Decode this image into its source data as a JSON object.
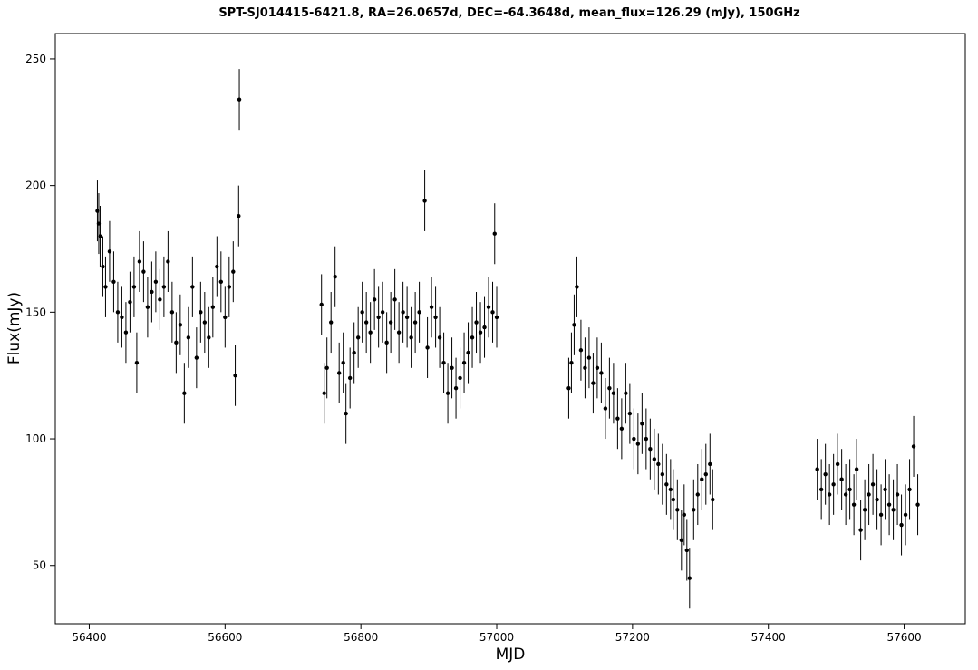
{
  "chart_data": {
    "type": "scatter",
    "title": "SPT-SJ014415-6421.8, RA=26.0657d, DEC=-64.3648d, mean_flux=126.29 (mJy), 150GHz",
    "xlabel": "MJD",
    "ylabel": "Flux(mJy)",
    "xlim": [
      56350,
      57690
    ],
    "ylim": [
      27,
      260
    ],
    "x_ticks": [
      "56400",
      "56600",
      "56800",
      "57000",
      "57200",
      "57400",
      "57600"
    ],
    "y_ticks": [
      "50",
      "100",
      "150",
      "200",
      "250"
    ],
    "grid": false,
    "legend": "none",
    "colors": {
      "marker": "#000000",
      "errorbar": "#000000",
      "frame": "#000000"
    },
    "series": [
      {
        "marker": "filled-circle",
        "error_bars": true,
        "typical_error": 12,
        "x": [
          56412,
          56414,
          56416,
          56420,
          56424,
          56430,
          56436,
          56442,
          56448,
          56454,
          56460,
          56466,
          56470,
          56474,
          56480,
          56486,
          56492,
          56498,
          56504,
          56510,
          56516,
          56522,
          56528,
          56534,
          56540,
          56546,
          56552,
          56558,
          56564,
          56570,
          56576,
          56582,
          56588,
          56594,
          56600,
          56606,
          56612,
          56615,
          56620,
          56621,
          56742,
          56746,
          56750,
          56756,
          56762,
          56768,
          56774,
          56778,
          56784,
          56790,
          56796,
          56802,
          56808,
          56814,
          56820,
          56826,
          56832,
          56838,
          56844,
          56850,
          56856,
          56862,
          56868,
          56874,
          56880,
          56886,
          56894,
          56898,
          56904,
          56910,
          56916,
          56922,
          56928,
          56934,
          56940,
          56946,
          56952,
          56958,
          56964,
          56970,
          56976,
          56982,
          56988,
          56994,
          56997,
          57000,
          57106,
          57110,
          57114,
          57118,
          57124,
          57130,
          57136,
          57142,
          57148,
          57154,
          57160,
          57166,
          57172,
          57178,
          57184,
          57190,
          57196,
          57202,
          57208,
          57214,
          57220,
          57226,
          57232,
          57238,
          57244,
          57250,
          57256,
          57260,
          57266,
          57272,
          57276,
          57280,
          57284,
          57290,
          57296,
          57302,
          57308,
          57314,
          57318,
          57472,
          57478,
          57484,
          57490,
          57496,
          57502,
          57508,
          57514,
          57520,
          57526,
          57530,
          57536,
          57542,
          57548,
          57554,
          57560,
          57566,
          57572,
          57578,
          57584,
          57590,
          57596,
          57602,
          57608,
          57614,
          57620
        ],
        "y": [
          190,
          185,
          180,
          168,
          160,
          174,
          162,
          150,
          148,
          142,
          154,
          160,
          130,
          170,
          166,
          152,
          158,
          162,
          155,
          160,
          170,
          150,
          138,
          145,
          118,
          140,
          160,
          132,
          150,
          146,
          140,
          152,
          168,
          162,
          148,
          160,
          166,
          125,
          188,
          234,
          153,
          118,
          128,
          146,
          164,
          126,
          130,
          110,
          124,
          134,
          140,
          150,
          146,
          142,
          155,
          148,
          150,
          138,
          146,
          155,
          142,
          150,
          148,
          140,
          146,
          150,
          194,
          136,
          152,
          148,
          140,
          130,
          118,
          128,
          120,
          124,
          130,
          134,
          140,
          146,
          142,
          144,
          152,
          150,
          181,
          148,
          120,
          130,
          145,
          160,
          135,
          128,
          132,
          122,
          128,
          126,
          112,
          120,
          118,
          108,
          104,
          118,
          110,
          100,
          98,
          106,
          100,
          96,
          92,
          90,
          86,
          82,
          80,
          76,
          72,
          60,
          70,
          56,
          45,
          72,
          78,
          84,
          86,
          90,
          76,
          88,
          80,
          86,
          78,
          82,
          90,
          84,
          78,
          80,
          74,
          88,
          64,
          72,
          78,
          82,
          76,
          70,
          80,
          74,
          72,
          78,
          66,
          70,
          80,
          97,
          74
        ]
      }
    ]
  }
}
